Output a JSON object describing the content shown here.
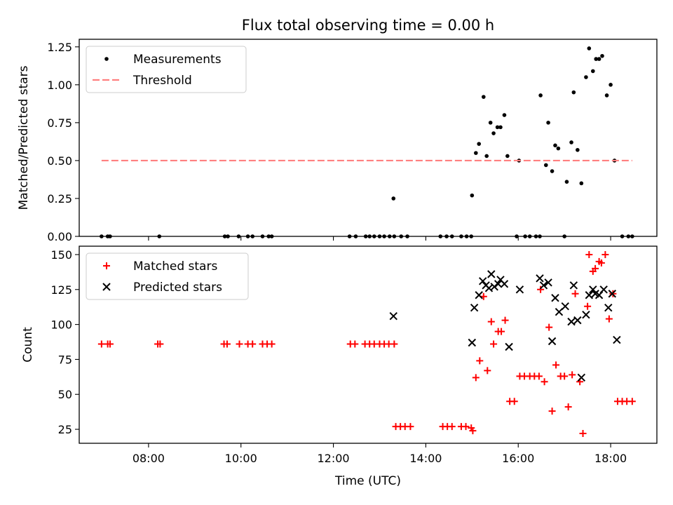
{
  "figure": {
    "title": "Flux total observing time = 0.00 h",
    "xlabel": "Time (UTC)",
    "xticks": [
      "08:00",
      "10:00",
      "12:00",
      "14:00",
      "16:00",
      "18:00"
    ]
  },
  "chart_data": [
    {
      "type": "scatter",
      "panel": "top",
      "ylabel": "Matched/Predicted stars",
      "xlim": [
        "06:30",
        "19:00"
      ],
      "ylim": [
        0,
        1.3
      ],
      "yticks": [
        "0.00",
        "0.25",
        "0.50",
        "0.75",
        "1.00",
        "1.25"
      ],
      "legend_position": "upper-left",
      "series": [
        {
          "name": "Measurements",
          "marker": "dot",
          "color": "#000000",
          "points": [
            [
              "06:59",
              0
            ],
            [
              "07:07",
              0
            ],
            [
              "07:10",
              0
            ],
            [
              "08:14",
              0
            ],
            [
              "09:39",
              0
            ],
            [
              "09:43",
              0
            ],
            [
              "09:57",
              0
            ],
            [
              "10:09",
              0
            ],
            [
              "10:15",
              0
            ],
            [
              "10:28",
              0
            ],
            [
              "10:36",
              0
            ],
            [
              "10:40",
              0
            ],
            [
              "12:21",
              0
            ],
            [
              "12:29",
              0
            ],
            [
              "12:42",
              0
            ],
            [
              "12:47",
              0
            ],
            [
              "12:53",
              0
            ],
            [
              "13:00",
              0
            ],
            [
              "13:06",
              0
            ],
            [
              "13:13",
              0
            ],
            [
              "13:19",
              0
            ],
            [
              "13:28",
              0
            ],
            [
              "13:36",
              0
            ],
            [
              "14:19",
              0
            ],
            [
              "14:27",
              0
            ],
            [
              "14:34",
              0
            ],
            [
              "14:46",
              0
            ],
            [
              "14:53",
              0
            ],
            [
              "14:59",
              0
            ],
            [
              "15:58",
              0
            ],
            [
              "16:09",
              0
            ],
            [
              "16:15",
              0
            ],
            [
              "16:23",
              0
            ],
            [
              "16:28",
              0
            ],
            [
              "17:00",
              0
            ],
            [
              "18:15",
              0
            ],
            [
              "18:23",
              0
            ],
            [
              "18:28",
              0
            ],
            [
              "13:18",
              0.25
            ],
            [
              "15:00",
              0.27
            ],
            [
              "15:05",
              0.55
            ],
            [
              "15:09",
              0.61
            ],
            [
              "15:15",
              0.92
            ],
            [
              "15:19",
              0.53
            ],
            [
              "15:24",
              0.75
            ],
            [
              "15:28",
              0.68
            ],
            [
              "15:33",
              0.72
            ],
            [
              "15:37",
              0.72
            ],
            [
              "15:42",
              0.8
            ],
            [
              "15:46",
              0.53
            ],
            [
              "16:01",
              0.5
            ],
            [
              "16:29",
              0.93
            ],
            [
              "16:36",
              0.47
            ],
            [
              "16:39",
              0.75
            ],
            [
              "16:44",
              0.43
            ],
            [
              "16:48",
              0.6
            ],
            [
              "16:52",
              0.58
            ],
            [
              "17:03",
              0.36
            ],
            [
              "17:09",
              0.62
            ],
            [
              "17:12",
              0.95
            ],
            [
              "17:17",
              0.57
            ],
            [
              "17:22",
              0.35
            ],
            [
              "17:28",
              1.05
            ],
            [
              "17:32",
              1.24
            ],
            [
              "17:37",
              1.09
            ],
            [
              "17:41",
              1.17
            ],
            [
              "17:45",
              1.17
            ],
            [
              "17:49",
              1.19
            ],
            [
              "17:55",
              0.93
            ],
            [
              "18:00",
              1.0
            ],
            [
              "18:05",
              0.5
            ]
          ]
        },
        {
          "name": "Threshold",
          "type": "line",
          "style": "dashed",
          "color": "#ff7f7f",
          "x": [
            "06:59",
            "18:28"
          ],
          "y": [
            0.5,
            0.5
          ]
        }
      ]
    },
    {
      "type": "scatter",
      "panel": "bottom",
      "ylabel": "Count",
      "xlim": [
        "06:30",
        "19:00"
      ],
      "ylim": [
        15,
        156
      ],
      "yticks": [
        "25",
        "50",
        "75",
        "100",
        "125",
        "150"
      ],
      "legend_position": "upper-left",
      "series": [
        {
          "name": "Matched stars",
          "marker": "plus",
          "color": "#ff0000",
          "points": [
            [
              "06:59",
              86
            ],
            [
              "07:07",
              86
            ],
            [
              "07:10",
              86
            ],
            [
              "08:12",
              86
            ],
            [
              "08:15",
              86
            ],
            [
              "09:38",
              86
            ],
            [
              "09:42",
              86
            ],
            [
              "09:58",
              86
            ],
            [
              "10:09",
              86
            ],
            [
              "10:15",
              86
            ],
            [
              "10:28",
              86
            ],
            [
              "10:34",
              86
            ],
            [
              "10:40",
              86
            ],
            [
              "12:22",
              86
            ],
            [
              "12:28",
              86
            ],
            [
              "12:41",
              86
            ],
            [
              "12:47",
              86
            ],
            [
              "12:53",
              86
            ],
            [
              "13:00",
              86
            ],
            [
              "13:06",
              86
            ],
            [
              "13:12",
              86
            ],
            [
              "13:19",
              86
            ],
            [
              "13:21",
              27
            ],
            [
              "13:27",
              27
            ],
            [
              "13:33",
              27
            ],
            [
              "13:40",
              27
            ],
            [
              "14:22",
              27
            ],
            [
              "14:28",
              27
            ],
            [
              "14:34",
              27
            ],
            [
              "14:46",
              27
            ],
            [
              "14:52",
              27
            ],
            [
              "14:59",
              26
            ],
            [
              "15:01",
              24
            ],
            [
              "15:05",
              62
            ],
            [
              "15:10",
              74
            ],
            [
              "15:15",
              120
            ],
            [
              "15:20",
              67
            ],
            [
              "15:25",
              102
            ],
            [
              "15:28",
              86
            ],
            [
              "15:34",
              95
            ],
            [
              "15:38",
              95
            ],
            [
              "15:43",
              103
            ],
            [
              "15:49",
              45
            ],
            [
              "15:55",
              45
            ],
            [
              "16:02",
              63
            ],
            [
              "16:08",
              63
            ],
            [
              "16:15",
              63
            ],
            [
              "16:21",
              63
            ],
            [
              "16:27",
              63
            ],
            [
              "16:29",
              125
            ],
            [
              "16:34",
              59
            ],
            [
              "16:40",
              98
            ],
            [
              "16:44",
              38
            ],
            [
              "16:49",
              71
            ],
            [
              "16:55",
              63
            ],
            [
              "17:00",
              63
            ],
            [
              "17:05",
              41
            ],
            [
              "17:10",
              64
            ],
            [
              "17:14",
              122
            ],
            [
              "17:20",
              59
            ],
            [
              "17:24",
              22
            ],
            [
              "17:30",
              113
            ],
            [
              "17:32",
              150
            ],
            [
              "17:37",
              138
            ],
            [
              "17:40",
              140
            ],
            [
              "17:45",
              145
            ],
            [
              "17:48",
              144
            ],
            [
              "17:53",
              150
            ],
            [
              "17:58",
              104
            ],
            [
              "18:03",
              122
            ],
            [
              "18:09",
              45
            ],
            [
              "18:15",
              45
            ],
            [
              "18:21",
              45
            ],
            [
              "18:28",
              45
            ]
          ]
        },
        {
          "name": "Predicted stars",
          "marker": "x",
          "color": "#000000",
          "points": [
            [
              "13:18",
              106
            ],
            [
              "15:00",
              87
            ],
            [
              "15:03",
              112
            ],
            [
              "15:09",
              121
            ],
            [
              "15:14",
              131
            ],
            [
              "15:18",
              128
            ],
            [
              "15:22",
              126
            ],
            [
              "15:25",
              136
            ],
            [
              "15:29",
              127
            ],
            [
              "15:34",
              129
            ],
            [
              "15:37",
              132
            ],
            [
              "15:42",
              129
            ],
            [
              "15:48",
              84
            ],
            [
              "16:02",
              125
            ],
            [
              "16:28",
              133
            ],
            [
              "16:33",
              128
            ],
            [
              "16:39",
              130
            ],
            [
              "16:44",
              88
            ],
            [
              "16:48",
              119
            ],
            [
              "16:53",
              109
            ],
            [
              "17:01",
              113
            ],
            [
              "17:09",
              102
            ],
            [
              "17:12",
              128
            ],
            [
              "17:17",
              103
            ],
            [
              "17:22",
              62
            ],
            [
              "17:28",
              107
            ],
            [
              "17:32",
              121
            ],
            [
              "17:37",
              125
            ],
            [
              "17:40",
              122
            ],
            [
              "17:45",
              121
            ],
            [
              "17:51",
              125
            ],
            [
              "17:57",
              112
            ],
            [
              "18:02",
              122
            ],
            [
              "18:08",
              89
            ]
          ]
        }
      ]
    }
  ]
}
